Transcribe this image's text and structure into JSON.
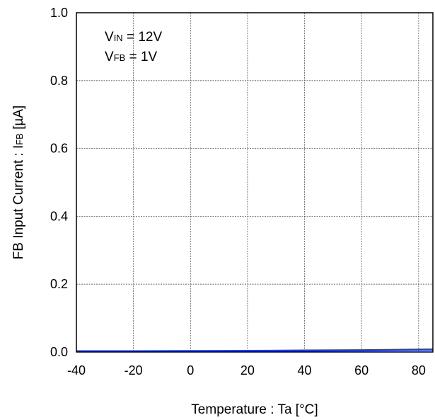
{
  "chart_data": {
    "type": "line",
    "title": "",
    "xlabel": "Temperature : Ta [°C]",
    "ylabel_main": "FB Input Current : I",
    "ylabel_sub": "FB",
    "ylabel_unit": " [µA]",
    "xlim": [
      -40,
      85
    ],
    "ylim": [
      0,
      1.0
    ],
    "xticks": [
      -40,
      -20,
      0,
      20,
      40,
      60,
      80
    ],
    "xtick_labels": [
      "-40",
      "-20",
      "0",
      "20",
      "40",
      "60",
      "80"
    ],
    "yticks": [
      0,
      0.2,
      0.4,
      0.6,
      0.8,
      1.0
    ],
    "ytick_labels": [
      "0.0",
      "0.2",
      "0.4",
      "0.6",
      "0.8",
      "1.0"
    ],
    "grid": true,
    "annotations": [
      {
        "main": "V",
        "sub": "IN",
        "rest": " = 12V"
      },
      {
        "main": "V",
        "sub": "FB",
        "rest": " = 1V"
      }
    ],
    "series": [
      {
        "color": "#1f3fd6",
        "x": [
          -40,
          -20,
          0,
          20,
          40,
          60,
          85
        ],
        "y": [
          0.0,
          0.0,
          0.0005,
          0.001,
          0.002,
          0.003,
          0.005
        ]
      }
    ]
  }
}
